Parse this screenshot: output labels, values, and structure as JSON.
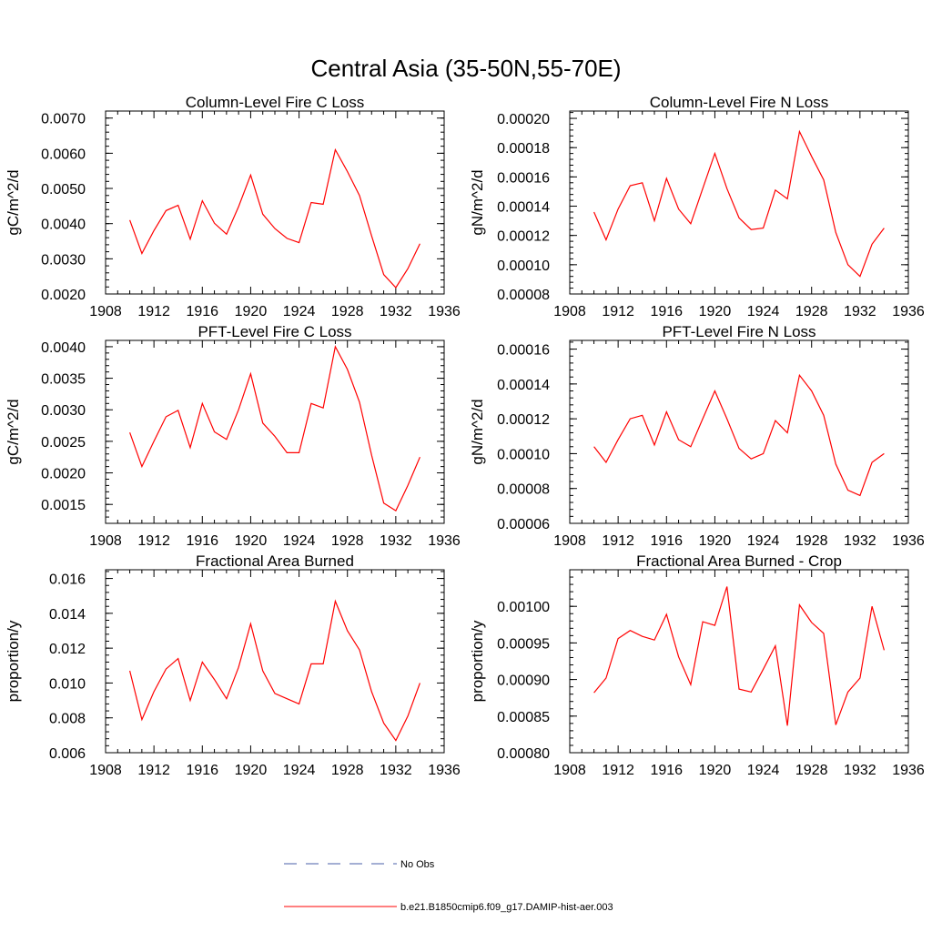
{
  "title": "Central Asia (35-50N,55-70E)",
  "line_color": "#ff0000",
  "obs_color": "#4a5fa8",
  "legend": {
    "obs_label": "No Obs",
    "model_label": "b.e21.B1850cmip6.f09_g17.DAMIP-hist-aer.003"
  },
  "chart_data": [
    {
      "type": "line",
      "title": "Column-Level Fire C Loss",
      "ylabel": "gC/m^2/d",
      "xlim": [
        1908,
        1936
      ],
      "ylim": [
        0.002,
        0.0072
      ],
      "x_ticks": [
        "1908",
        "1912",
        "1916",
        "1920",
        "1924",
        "1928",
        "1932",
        "1936"
      ],
      "y_ticks": [
        {
          "v": 0.002,
          "label": "0.0020"
        },
        {
          "v": 0.003,
          "label": "0.0030"
        },
        {
          "v": 0.004,
          "label": "0.0040"
        },
        {
          "v": 0.005,
          "label": "0.0050"
        },
        {
          "v": 0.006,
          "label": "0.0060"
        },
        {
          "v": 0.007,
          "label": "0.0070"
        }
      ],
      "x": [
        1910,
        1911,
        1912,
        1913,
        1914,
        1915,
        1916,
        1917,
        1918,
        1919,
        1920,
        1921,
        1922,
        1923,
        1924,
        1925,
        1926,
        1927,
        1928,
        1929,
        1930,
        1931,
        1932,
        1933,
        1934
      ],
      "values": [
        0.0041,
        0.00315,
        0.0038,
        0.00437,
        0.00452,
        0.00356,
        0.00465,
        0.00401,
        0.0037,
        0.00448,
        0.00538,
        0.00427,
        0.00386,
        0.00358,
        0.00346,
        0.0046,
        0.00455,
        0.0061,
        0.00548,
        0.0048,
        0.00365,
        0.00255,
        0.00218,
        0.00272,
        0.00343
      ]
    },
    {
      "type": "line",
      "title": "Column-Level Fire N Loss",
      "ylabel": "gN/m^2/d",
      "xlim": [
        1908,
        1936
      ],
      "ylim": [
        8e-05,
        0.000205
      ],
      "x_ticks": [
        "1908",
        "1912",
        "1916",
        "1920",
        "1924",
        "1928",
        "1932",
        "1936"
      ],
      "y_ticks": [
        {
          "v": 8e-05,
          "label": "0.00008"
        },
        {
          "v": 0.0001,
          "label": "0.00010"
        },
        {
          "v": 0.00012,
          "label": "0.00012"
        },
        {
          "v": 0.00014,
          "label": "0.00014"
        },
        {
          "v": 0.00016,
          "label": "0.00016"
        },
        {
          "v": 0.00018,
          "label": "0.00018"
        },
        {
          "v": 0.0002,
          "label": "0.00020"
        }
      ],
      "x": [
        1910,
        1911,
        1912,
        1913,
        1914,
        1915,
        1916,
        1917,
        1918,
        1919,
        1920,
        1921,
        1922,
        1923,
        1924,
        1925,
        1926,
        1927,
        1928,
        1929,
        1930,
        1931,
        1932,
        1933,
        1934
      ],
      "values": [
        0.000136,
        0.000117,
        0.000138,
        0.000154,
        0.000156,
        0.00013,
        0.000159,
        0.000138,
        0.000128,
        0.000152,
        0.000176,
        0.000152,
        0.000132,
        0.000124,
        0.000125,
        0.000151,
        0.000145,
        0.000191,
        0.000174,
        0.000158,
        0.000122,
        0.0001,
        9.2e-05,
        0.000114,
        0.000125
      ]
    },
    {
      "type": "line",
      "title": "PFT-Level Fire C Loss",
      "ylabel": "gC/m^2/d",
      "xlim": [
        1908,
        1936
      ],
      "ylim": [
        0.0012,
        0.0041
      ],
      "x_ticks": [
        "1908",
        "1912",
        "1916",
        "1920",
        "1924",
        "1928",
        "1932",
        "1936"
      ],
      "y_ticks": [
        {
          "v": 0.0015,
          "label": "0.0015"
        },
        {
          "v": 0.002,
          "label": "0.0020"
        },
        {
          "v": 0.0025,
          "label": "0.0025"
        },
        {
          "v": 0.003,
          "label": "0.0030"
        },
        {
          "v": 0.0035,
          "label": "0.0035"
        },
        {
          "v": 0.004,
          "label": "0.0040"
        }
      ],
      "x": [
        1910,
        1911,
        1912,
        1913,
        1914,
        1915,
        1916,
        1917,
        1918,
        1919,
        1920,
        1921,
        1922,
        1923,
        1924,
        1925,
        1926,
        1927,
        1928,
        1929,
        1930,
        1931,
        1932,
        1933,
        1934
      ],
      "values": [
        0.00264,
        0.0021,
        0.0025,
        0.00289,
        0.00299,
        0.0024,
        0.0031,
        0.00265,
        0.00253,
        0.003,
        0.00357,
        0.00279,
        0.00258,
        0.00232,
        0.00232,
        0.0031,
        0.00303,
        0.004,
        0.00364,
        0.00312,
        0.00228,
        0.00152,
        0.0014,
        0.0018,
        0.00225
      ]
    },
    {
      "type": "line",
      "title": "PFT-Level Fire N Loss",
      "ylabel": "gN/m^2/d",
      "xlim": [
        1908,
        1936
      ],
      "ylim": [
        6e-05,
        0.000165
      ],
      "x_ticks": [
        "1908",
        "1912",
        "1916",
        "1920",
        "1924",
        "1928",
        "1932",
        "1936"
      ],
      "y_ticks": [
        {
          "v": 6e-05,
          "label": "0.00006"
        },
        {
          "v": 8e-05,
          "label": "0.00008"
        },
        {
          "v": 0.0001,
          "label": "0.00010"
        },
        {
          "v": 0.00012,
          "label": "0.00012"
        },
        {
          "v": 0.00014,
          "label": "0.00014"
        },
        {
          "v": 0.00016,
          "label": "0.00016"
        }
      ],
      "x": [
        1910,
        1911,
        1912,
        1913,
        1914,
        1915,
        1916,
        1917,
        1918,
        1919,
        1920,
        1921,
        1922,
        1923,
        1924,
        1925,
        1926,
        1927,
        1928,
        1929,
        1930,
        1931,
        1932,
        1933,
        1934
      ],
      "values": [
        0.000104,
        9.5e-05,
        0.000108,
        0.00012,
        0.000122,
        0.000105,
        0.000124,
        0.000108,
        0.000104,
        0.00012,
        0.000136,
        0.00012,
        0.000103,
        9.7e-05,
        0.0001,
        0.000119,
        0.000112,
        0.000145,
        0.000136,
        0.000122,
        9.4e-05,
        7.9e-05,
        7.6e-05,
        9.5e-05,
        0.0001
      ]
    },
    {
      "type": "line",
      "title": "Fractional Area Burned",
      "ylabel": "proportion/y",
      "xlim": [
        1908,
        1936
      ],
      "ylim": [
        0.006,
        0.0165
      ],
      "x_ticks": [
        "1908",
        "1912",
        "1916",
        "1920",
        "1924",
        "1928",
        "1932",
        "1936"
      ],
      "y_ticks": [
        {
          "v": 0.006,
          "label": "0.006"
        },
        {
          "v": 0.008,
          "label": "0.008"
        },
        {
          "v": 0.01,
          "label": "0.010"
        },
        {
          "v": 0.012,
          "label": "0.012"
        },
        {
          "v": 0.014,
          "label": "0.014"
        },
        {
          "v": 0.016,
          "label": "0.016"
        }
      ],
      "x": [
        1910,
        1911,
        1912,
        1913,
        1914,
        1915,
        1916,
        1917,
        1918,
        1919,
        1920,
        1921,
        1922,
        1923,
        1924,
        1925,
        1926,
        1927,
        1928,
        1929,
        1930,
        1931,
        1932,
        1933,
        1934
      ],
      "values": [
        0.0107,
        0.0079,
        0.0095,
        0.0108,
        0.0114,
        0.009,
        0.0112,
        0.0102,
        0.0091,
        0.0109,
        0.0134,
        0.0107,
        0.0094,
        0.0091,
        0.0088,
        0.0111,
        0.0111,
        0.0147,
        0.013,
        0.0119,
        0.0095,
        0.0077,
        0.0067,
        0.0081,
        0.01
      ]
    },
    {
      "type": "line",
      "title": "Fractional Area Burned - Crop",
      "ylabel": "proportion/y",
      "xlim": [
        1908,
        1936
      ],
      "ylim": [
        0.0008,
        0.00105
      ],
      "x_ticks": [
        "1908",
        "1912",
        "1916",
        "1920",
        "1924",
        "1928",
        "1932",
        "1936"
      ],
      "y_ticks": [
        {
          "v": 0.0008,
          "label": "0.00080"
        },
        {
          "v": 0.00085,
          "label": "0.00085"
        },
        {
          "v": 0.0009,
          "label": "0.00090"
        },
        {
          "v": 0.00095,
          "label": "0.00095"
        },
        {
          "v": 0.001,
          "label": "0.00100"
        }
      ],
      "x": [
        1910,
        1911,
        1912,
        1913,
        1914,
        1915,
        1916,
        1917,
        1918,
        1919,
        1920,
        1921,
        1922,
        1923,
        1924,
        1925,
        1926,
        1927,
        1928,
        1929,
        1930,
        1931,
        1932,
        1933,
        1934
      ],
      "values": [
        0.000882,
        0.000902,
        0.000956,
        0.000967,
        0.000959,
        0.000954,
        0.000989,
        0.000931,
        0.000893,
        0.000979,
        0.000974,
        0.001027,
        0.000887,
        0.000883,
        0.000914,
        0.000946,
        0.000837,
        0.001002,
        0.000978,
        0.000963,
        0.000838,
        0.000883,
        0.000902,
        0.001,
        0.00094
      ]
    }
  ]
}
